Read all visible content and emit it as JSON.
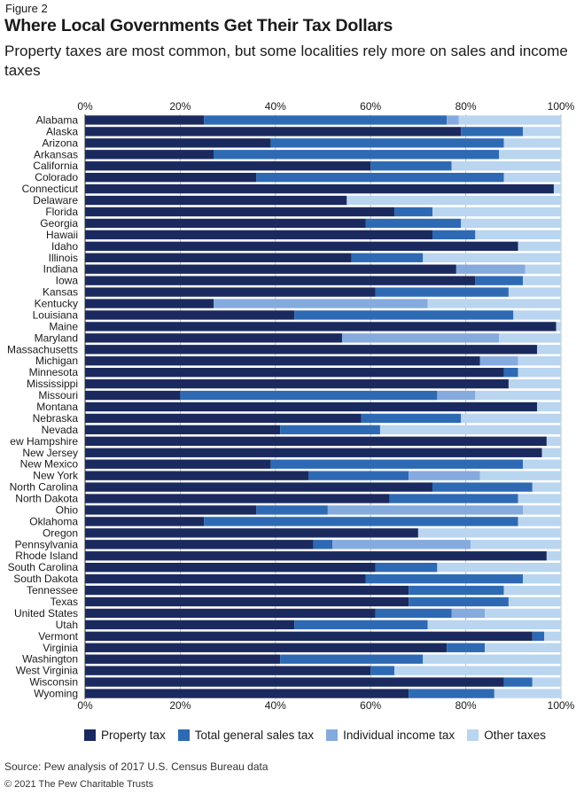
{
  "figure_label": "Figure 2",
  "title": "Where Local Governments Get Their Tax Dollars",
  "subtitle": "Property taxes are most common, but some localities rely more on sales and income taxes",
  "source": "Source: Pew analysis of 2017 U.S. Census Bureau data",
  "copyright": "© 2021 The Pew Charitable Trusts",
  "colors": {
    "property": "#1b2a5e",
    "sales": "#2e6ab4",
    "income": "#85aade",
    "other": "#b9d5ef",
    "grid": "#bfbfbf",
    "axis": "#333333"
  },
  "chart_data": {
    "type": "bar",
    "orientation": "horizontal",
    "stacked": true,
    "xlim": [
      0,
      100
    ],
    "x_ticks": [
      "0%",
      "20%",
      "40%",
      "60%",
      "80%",
      "100%"
    ],
    "grid": true,
    "legend_position": "bottom",
    "categories": [
      "Alabama",
      "Alaska",
      "Arizona",
      "Arkansas",
      "California",
      "Colorado",
      "Connecticut",
      "Delaware",
      "Florida",
      "Georgia",
      "Hawaii",
      "Idaho",
      "Illinois",
      "Indiana",
      "Iowa",
      "Kansas",
      "Kentucky",
      "Louisiana",
      "Maine",
      "Maryland",
      "Massachusetts",
      "Michigan",
      "Minnesota",
      "Mississippi",
      "Missouri",
      "Montana",
      "Nebraska",
      "Nevada",
      "ew Hampshire",
      "New Jersey",
      "New Mexico",
      "New York",
      "North Carolina",
      "North Dakota",
      "Ohio",
      "Oklahoma",
      "Oregon",
      "Pennsylvania",
      "Rhode Island",
      "South Carolina",
      "South Dakota",
      "Tennessee",
      "Texas",
      "United States",
      "Utah",
      "Vermont",
      "Virginia",
      "Washington",
      "West Virginia",
      "Wisconsin",
      "Wyoming"
    ],
    "series": [
      {
        "name": "Property tax",
        "key": "property",
        "values": [
          25,
          79,
          39,
          27,
          60,
          36,
          98.5,
          55,
          65,
          59,
          73,
          91,
          56,
          78,
          82,
          61,
          27,
          44,
          99,
          54,
          95,
          83,
          88,
          89,
          20,
          95,
          58,
          41,
          97,
          96,
          39,
          47,
          73,
          64,
          36,
          25,
          70,
          48,
          97,
          61,
          59,
          68,
          68,
          61,
          44,
          94,
          76,
          41,
          60,
          88,
          68
        ]
      },
      {
        "name": "Total general sales tax",
        "key": "sales",
        "values": [
          51,
          13,
          49,
          60,
          17,
          52,
          0,
          0,
          8,
          20,
          9,
          0,
          15,
          0,
          10,
          28,
          0,
          46,
          0,
          0,
          0,
          0,
          3,
          0,
          54,
          0,
          21,
          21,
          0,
          0,
          53,
          21,
          21,
          27,
          15,
          66,
          0,
          4,
          0,
          13,
          33,
          20,
          21,
          16,
          28,
          2.5,
          8,
          30,
          5,
          6,
          18
        ]
      },
      {
        "name": "Individual income tax",
        "key": "income",
        "values": [
          2.5,
          0,
          0,
          0,
          0,
          0,
          0,
          0,
          0,
          0,
          0,
          0,
          0,
          14.5,
          0,
          0,
          45,
          0,
          0,
          33,
          0,
          8,
          0,
          0,
          8,
          0,
          0,
          0,
          0,
          0,
          0,
          15,
          0,
          0,
          41,
          0,
          0,
          29,
          0,
          0,
          0,
          0,
          0,
          7,
          0,
          0,
          0,
          0,
          0,
          0,
          0
        ]
      }
    ],
    "other_series_name": "Other taxes",
    "xlabel": "",
    "ylabel": ""
  }
}
